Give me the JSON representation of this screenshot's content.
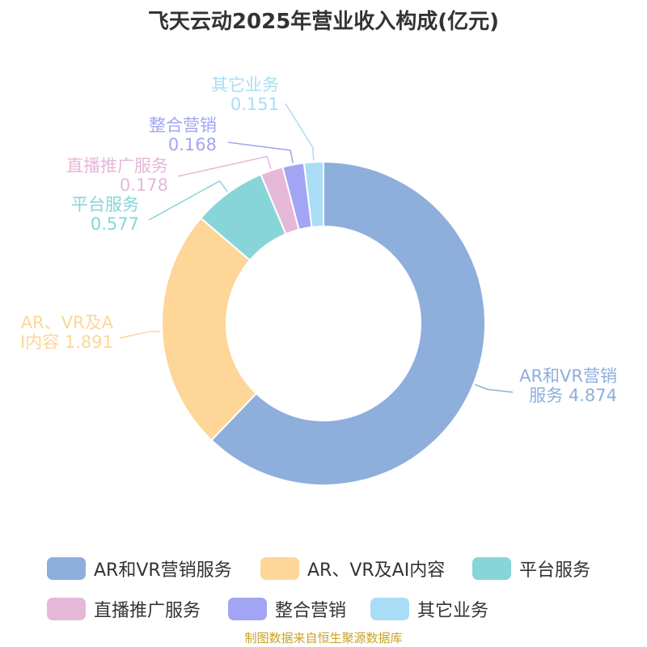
{
  "title": "飞天云动2025年营业收入构成(亿元)",
  "source": "制图数据来自恒生聚源数据库",
  "chart_data": {
    "type": "pie",
    "donut": true,
    "title": "飞天云动2025年营业收入构成(亿元)",
    "slices": [
      {
        "name": "AR和VR营销服务",
        "value": 4.874,
        "label_lines": [
          "AR和VR营销",
          "服务 4.874"
        ],
        "color": "#8eaedc"
      },
      {
        "name": "AR、VR及AI内容",
        "value": 1.891,
        "label_lines": [
          "AR、VR及A",
          "I内容 1.891"
        ],
        "color": "#fdd698"
      },
      {
        "name": "平台服务",
        "value": 0.577,
        "label_lines": [
          "平台服务",
          "0.577"
        ],
        "color": "#87d5d8"
      },
      {
        "name": "直播推广服务",
        "value": 0.178,
        "label_lines": [
          "直播推广服务",
          "0.178"
        ],
        "color": "#e6b8d8"
      },
      {
        "name": "整合营销",
        "value": 0.168,
        "label_lines": [
          "整合营销",
          "0.168"
        ],
        "color": "#a2a5f3"
      },
      {
        "name": "其它业务",
        "value": 0.151,
        "label_lines": [
          "其它业务",
          "0.151"
        ],
        "color": "#a9ddf6"
      }
    ],
    "legend_position": "bottom"
  },
  "legend": [
    {
      "label": "AR和VR营销服务",
      "color": "#8eaedc"
    },
    {
      "label": "AR、VR及AI内容",
      "color": "#fdd698"
    },
    {
      "label": "平台服务",
      "color": "#87d5d8"
    },
    {
      "label": "直播推广服务",
      "color": "#e6b8d8"
    },
    {
      "label": "整合营销",
      "color": "#a2a5f3"
    },
    {
      "label": "其它业务",
      "color": "#a9ddf6"
    }
  ]
}
